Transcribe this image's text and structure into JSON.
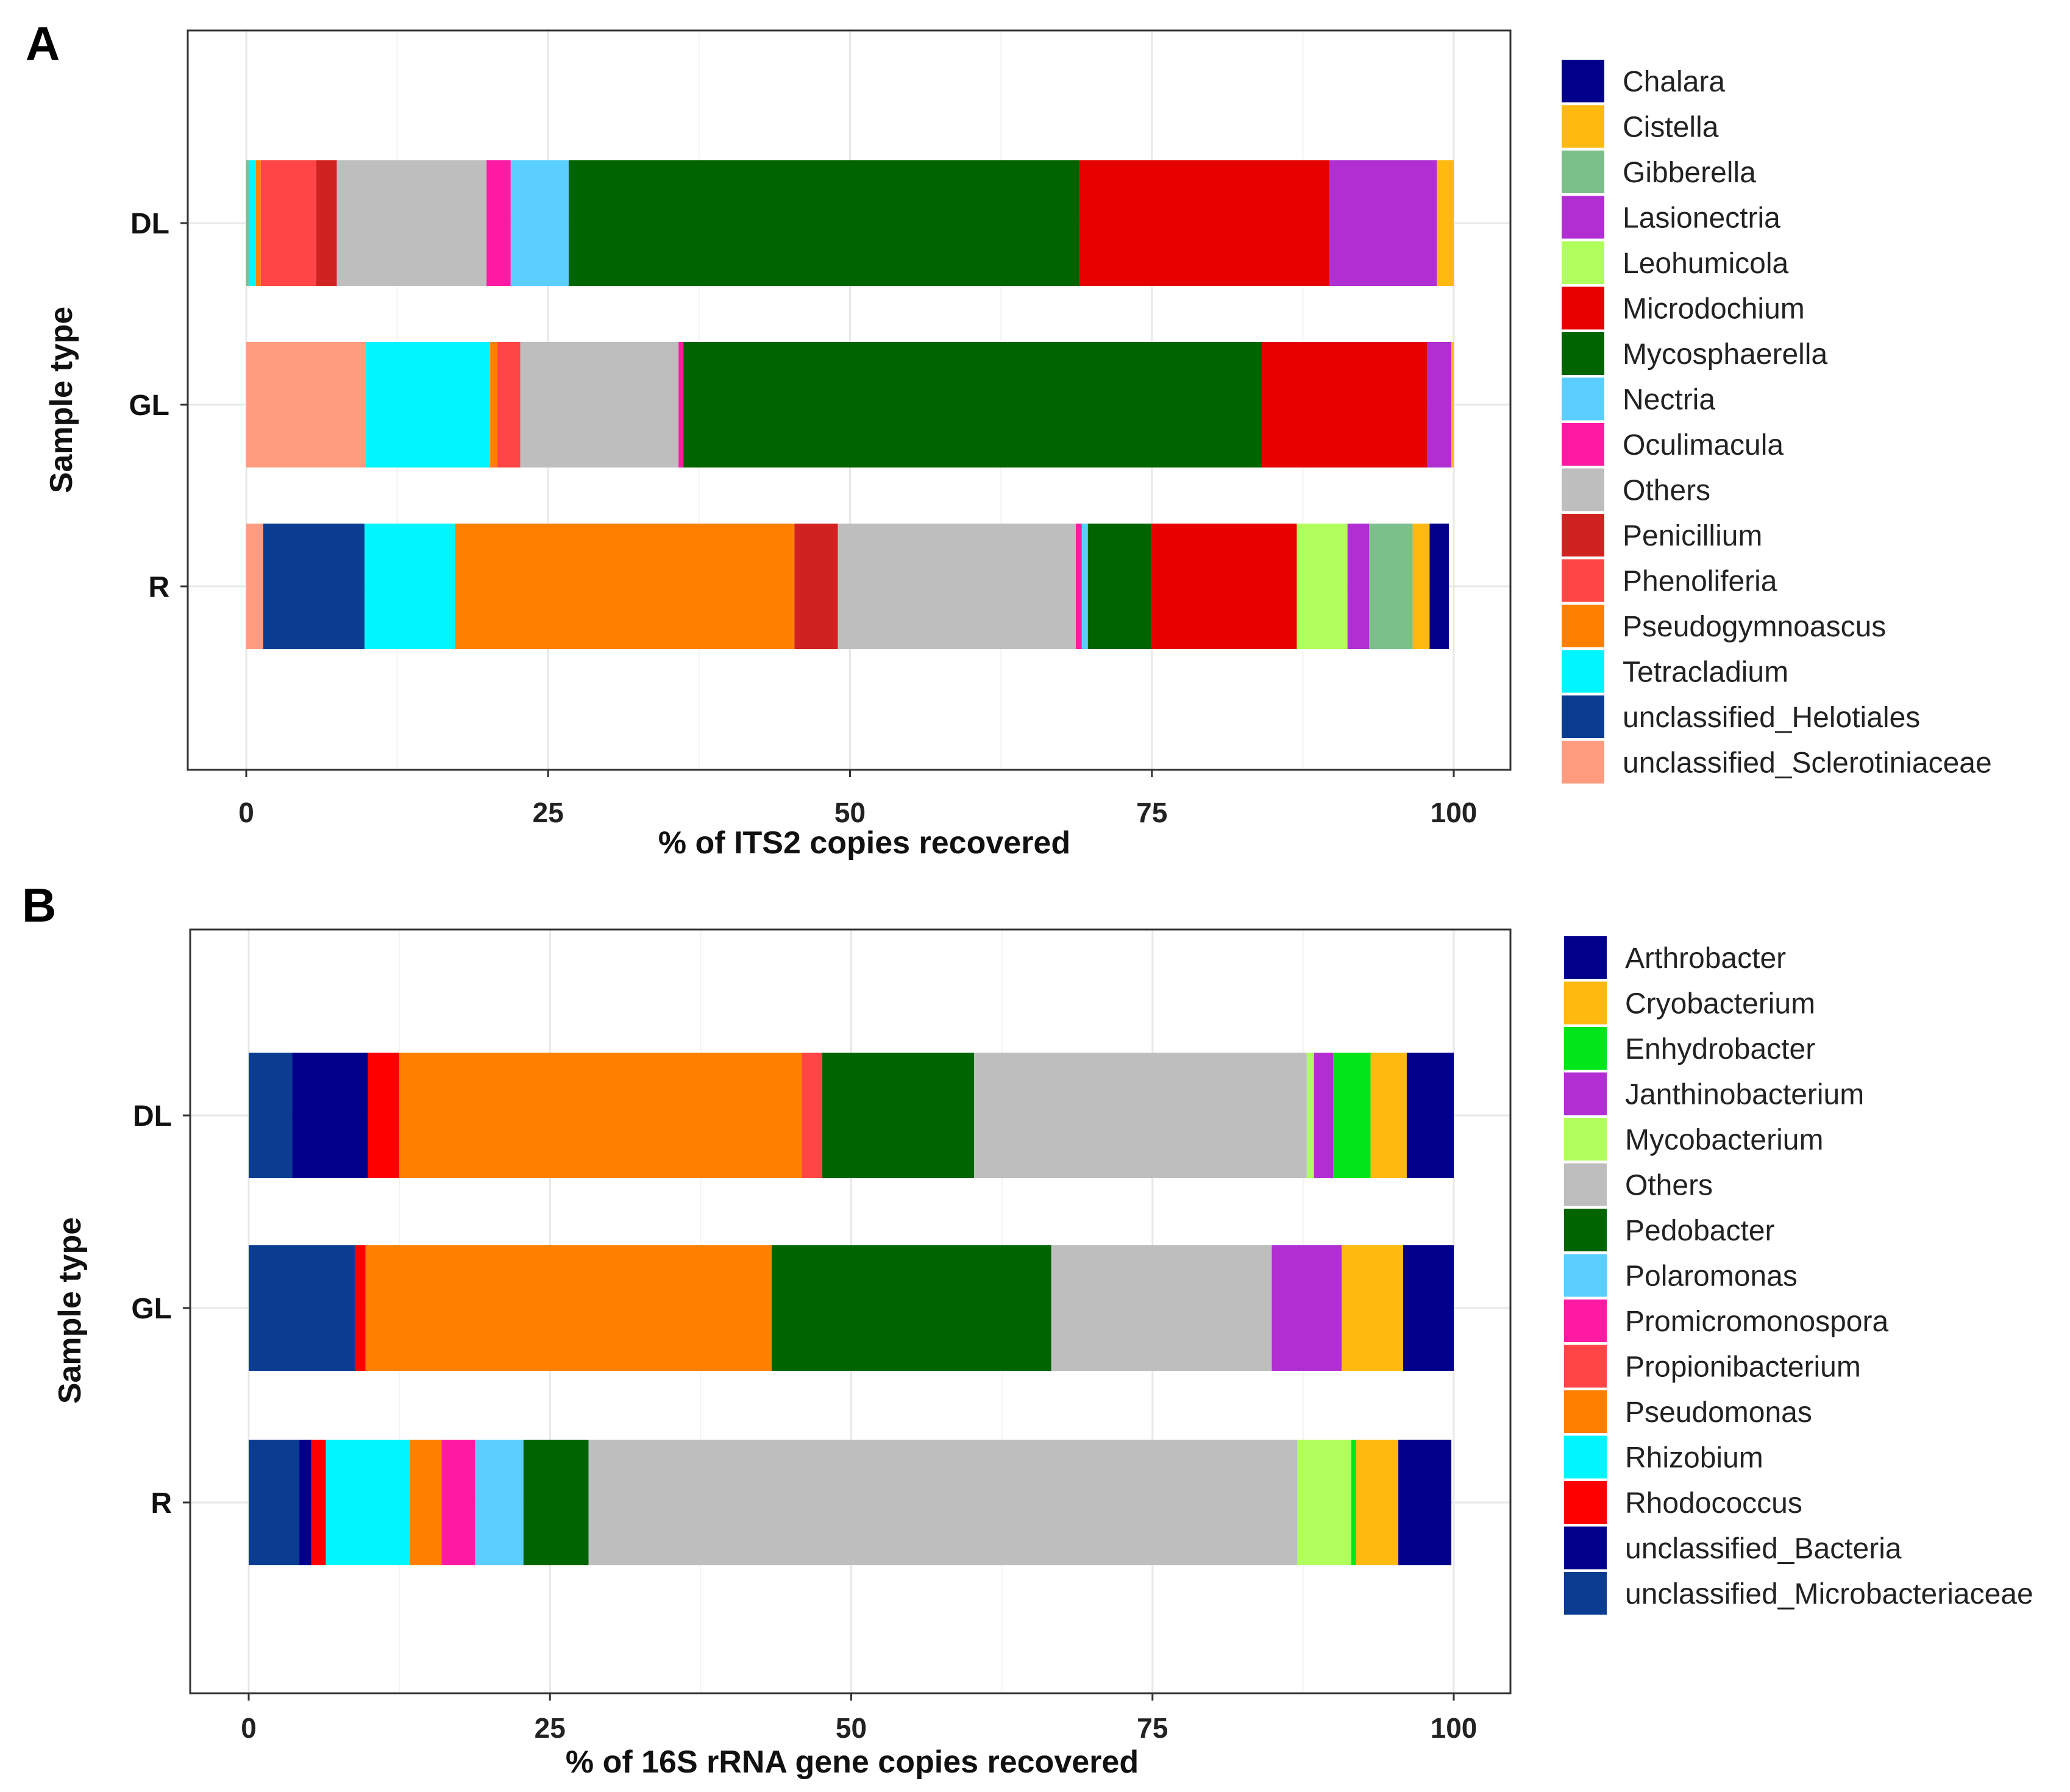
{
  "colors": {
    "Chalara": "#00008b",
    "Cistella": "#ffb90f",
    "Gibberella": "#7bbf8a",
    "Lasionectria": "#b02ed2",
    "Leohumicola": "#b0ff5c",
    "Microdochium": "#e60000",
    "Mycosphaerella": "#006400",
    "Nectria": "#5acfff",
    "Oculimacula": "#ff1aa3",
    "Others": "#bebebe",
    "Penicillium": "#d12222",
    "Phenoliferia": "#ff4545",
    "Pseudogymnoascus": "#ff8000",
    "Tetracladium": "#00f5ff",
    "unclassified_Helotiales": "#0a3d91",
    "unclassified_Sclerotiniaceae": "#ff9c7f",
    "Arthrobacter": "#00008b",
    "Cryobacterium": "#ffb90f",
    "Enhydrobacter": "#00e61a",
    "Janthinobacterium": "#b02ed2",
    "Mycobacterium": "#b0ff5c",
    "Pedobacter": "#006400",
    "Polaromonas": "#5acfff",
    "Promicromonospora": "#ff1aa3",
    "Propionibacterium": "#ff4545",
    "Pseudomonas": "#ff8000",
    "Rhizobium": "#00f5ff",
    "Rhodococcus": "#ff0000",
    "unclassified_Bacteria": "#00008b",
    "unclassified_Microbacteriaceae": "#0a3d91"
  },
  "chart_data": [
    {
      "type": "bar",
      "orientation": "horizontal",
      "stacked": true,
      "panel_label": "A",
      "xlabel": "% of ITS2 copies recovered",
      "ylabel": "Sample type",
      "xlim": [
        0,
        100
      ],
      "xticks": [
        "0",
        "25",
        "50",
        "75",
        "100"
      ],
      "categories": [
        "DL",
        "GL",
        "R"
      ],
      "legend": [
        "Chalara",
        "Cistella",
        "Gibberella",
        "Lasionectria",
        "Leohumicola",
        "Microdochium",
        "Mycosphaerella",
        "Nectria",
        "Oculimacula",
        "Others",
        "Penicillium",
        "Phenoliferia",
        "Pseudogymnoascus",
        "Tetracladium",
        "unclassified_Helotiales",
        "unclassified_Sclerotiniaceae"
      ],
      "bars": [
        {
          "category": "DL",
          "segments": [
            {
              "taxon": "Gibberella",
              "value": 0.2
            },
            {
              "taxon": "Tetracladium",
              "value": 0.6
            },
            {
              "taxon": "Pseudogymnoascus",
              "value": 0.4
            },
            {
              "taxon": "Phenoliferia",
              "value": 4.6
            },
            {
              "taxon": "Penicillium",
              "value": 1.7
            },
            {
              "taxon": "Others",
              "value": 12.4
            },
            {
              "taxon": "Oculimacula",
              "value": 2.0
            },
            {
              "taxon": "Nectria",
              "value": 4.8
            },
            {
              "taxon": "Mycosphaerella",
              "value": 42.3
            },
            {
              "taxon": "Microdochium",
              "value": 20.7
            },
            {
              "taxon": "Lasionectria",
              "value": 8.9
            },
            {
              "taxon": "Cistella",
              "value": 1.4
            }
          ]
        },
        {
          "category": "GL",
          "segments": [
            {
              "taxon": "unclassified_Sclerotiniaceae",
              "value": 9.9
            },
            {
              "taxon": "Tetracladium",
              "value": 10.3
            },
            {
              "taxon": "Pseudogymnoascus",
              "value": 0.6
            },
            {
              "taxon": "Phenoliferia",
              "value": 1.9
            },
            {
              "taxon": "Others",
              "value": 13.1
            },
            {
              "taxon": "Oculimacula",
              "value": 0.4
            },
            {
              "taxon": "Mycosphaerella",
              "value": 47.9
            },
            {
              "taxon": "Microdochium",
              "value": 13.7
            },
            {
              "taxon": "Lasionectria",
              "value": 2.0
            },
            {
              "taxon": "Cistella",
              "value": 0.2
            }
          ]
        },
        {
          "category": "R",
          "segments": [
            {
              "taxon": "unclassified_Sclerotiniaceae",
              "value": 1.4
            },
            {
              "taxon": "unclassified_Helotiales",
              "value": 8.4
            },
            {
              "taxon": "Tetracladium",
              "value": 7.5
            },
            {
              "taxon": "Pseudogymnoascus",
              "value": 28.1
            },
            {
              "taxon": "Penicillium",
              "value": 3.6
            },
            {
              "taxon": "Others",
              "value": 19.7
            },
            {
              "taxon": "Oculimacula",
              "value": 0.5
            },
            {
              "taxon": "Nectria",
              "value": 0.5
            },
            {
              "taxon": "Mycosphaerella",
              "value": 5.3
            },
            {
              "taxon": "Microdochium",
              "value": 12.0
            },
            {
              "taxon": "Leohumicola",
              "value": 4.2
            },
            {
              "taxon": "Lasionectria",
              "value": 1.8
            },
            {
              "taxon": "Gibberella",
              "value": 3.6
            },
            {
              "taxon": "Cistella",
              "value": 1.4
            },
            {
              "taxon": "Chalara",
              "value": 1.6
            }
          ]
        }
      ]
    },
    {
      "type": "bar",
      "orientation": "horizontal",
      "stacked": true,
      "panel_label": "B",
      "xlabel": "% of 16S rRNA gene copies recovered",
      "ylabel": "Sample type",
      "xlim": [
        0,
        100
      ],
      "xticks": [
        "0",
        "25",
        "50",
        "75",
        "100"
      ],
      "categories": [
        "DL",
        "GL",
        "R"
      ],
      "legend": [
        "Arthrobacter",
        "Cryobacterium",
        "Enhydrobacter",
        "Janthinobacterium",
        "Mycobacterium",
        "Others",
        "Pedobacter",
        "Polaromonas",
        "Promicromonospora",
        "Propionibacterium",
        "Pseudomonas",
        "Rhizobium",
        "Rhodococcus",
        "unclassified_Bacteria",
        "unclassified_Microbacteriaceae"
      ],
      "bars": [
        {
          "category": "DL",
          "segments": [
            {
              "taxon": "unclassified_Microbacteriaceae",
              "value": 3.6
            },
            {
              "taxon": "unclassified_Bacteria",
              "value": 6.3
            },
            {
              "taxon": "Rhodococcus",
              "value": 2.6
            },
            {
              "taxon": "Pseudomonas",
              "value": 33.4
            },
            {
              "taxon": "Propionibacterium",
              "value": 1.7
            },
            {
              "taxon": "Pedobacter",
              "value": 12.6
            },
            {
              "taxon": "Others",
              "value": 27.6
            },
            {
              "taxon": "Mycobacterium",
              "value": 0.6
            },
            {
              "taxon": "Janthinobacterium",
              "value": 1.6
            },
            {
              "taxon": "Enhydrobacter",
              "value": 3.1
            },
            {
              "taxon": "Cryobacterium",
              "value": 3.0
            },
            {
              "taxon": "Arthrobacter",
              "value": 3.9
            }
          ]
        },
        {
          "category": "GL",
          "segments": [
            {
              "taxon": "unclassified_Microbacteriaceae",
              "value": 8.8
            },
            {
              "taxon": "Rhodococcus",
              "value": 0.9
            },
            {
              "taxon": "Pseudomonas",
              "value": 33.7
            },
            {
              "taxon": "Pedobacter",
              "value": 23.2
            },
            {
              "taxon": "Others",
              "value": 18.3
            },
            {
              "taxon": "Janthinobacterium",
              "value": 5.8
            },
            {
              "taxon": "Cryobacterium",
              "value": 5.1
            },
            {
              "taxon": "Arthrobacter",
              "value": 4.2
            }
          ]
        },
        {
          "category": "R",
          "segments": [
            {
              "taxon": "unclassified_Microbacteriaceae",
              "value": 4.2
            },
            {
              "taxon": "unclassified_Bacteria",
              "value": 1.0
            },
            {
              "taxon": "Rhodococcus",
              "value": 1.2
            },
            {
              "taxon": "Rhizobium",
              "value": 7.0
            },
            {
              "taxon": "Pseudomonas",
              "value": 2.6
            },
            {
              "taxon": "Promicromonospora",
              "value": 2.8
            },
            {
              "taxon": "Polaromonas",
              "value": 4.0
            },
            {
              "taxon": "Pedobacter",
              "value": 5.4
            },
            {
              "taxon": "Others",
              "value": 58.8
            },
            {
              "taxon": "Mycobacterium",
              "value": 4.5
            },
            {
              "taxon": "Enhydrobacter",
              "value": 0.4
            },
            {
              "taxon": "Cryobacterium",
              "value": 3.5
            },
            {
              "taxon": "Arthrobacter",
              "value": 4.4
            }
          ]
        }
      ]
    }
  ]
}
